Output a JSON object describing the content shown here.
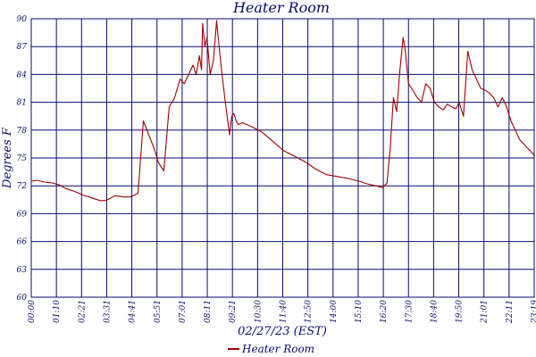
{
  "chart_data": {
    "type": "line",
    "title": "Heater Room",
    "xlabel": "02/27/23 (EST)",
    "ylabel": "Degrees F",
    "ylim": [
      60,
      90
    ],
    "y_ticks": [
      "60",
      "63",
      "66",
      "69",
      "72",
      "75",
      "78",
      "81",
      "84",
      "87",
      "90"
    ],
    "x_ticks": [
      "00:00",
      "01:10",
      "02:21",
      "03:31",
      "04:41",
      "05:51",
      "07:01",
      "08:11",
      "09:21",
      "10:30",
      "11:40",
      "12:50",
      "14:00",
      "15:10",
      "16:20",
      "17:30",
      "18:40",
      "19:50",
      "21:01",
      "22:11",
      "23:19"
    ],
    "grid": true,
    "legend_position": "bottom-center",
    "series": [
      {
        "name": "Heater Room",
        "color": "#a00000",
        "x_hours": [
          0,
          0.3,
          0.6,
          1,
          1.3,
          1.6,
          2,
          2.4,
          2.8,
          3.2,
          3.45,
          3.7,
          3.85,
          4,
          4.3,
          4.6,
          4.95,
          5.2,
          5.45,
          5.7,
          5.9,
          6.15,
          6.4,
          6.65,
          6.9,
          7.1,
          7.3,
          7.5,
          7.65,
          7.8,
          7.9,
          7.95,
          8.05,
          8.15,
          8.3,
          8.45,
          8.6,
          8.65,
          8.8,
          9,
          9.2,
          9.3,
          9.4,
          9.5,
          9.6,
          9.8,
          10.2,
          10.7,
          11.2,
          11.7,
          12.2,
          12.7,
          13.2,
          13.7,
          14.2,
          14.7,
          15.2,
          15.6,
          16,
          16.3,
          16.5,
          16.65,
          16.8,
          16.95,
          17.1,
          17.25,
          17.35,
          17.5,
          17.7,
          17.9,
          18.1,
          18.3,
          18.5,
          18.7,
          18.9,
          19.1,
          19.3,
          19.5,
          19.7,
          19.85,
          20.05,
          20.25,
          20.45,
          20.65,
          20.85,
          21.05,
          21.25,
          21.45,
          21.65,
          21.85,
          22.05,
          22.25,
          22.45,
          22.65,
          22.85,
          23.05,
          23.25,
          23.35
        ],
        "values": [
          72.5,
          72.6,
          72.4,
          72.3,
          72.1,
          71.7,
          71.4,
          71.0,
          70.7,
          70.4,
          70.4,
          70.7,
          70.9,
          70.9,
          70.8,
          70.8,
          71.2,
          79.0,
          77.5,
          76.0,
          74.5,
          73.6,
          80.5,
          81.5,
          83.5,
          83.0,
          84.0,
          85.0,
          84.0,
          86.0,
          84.5,
          89.5,
          87.0,
          88.0,
          84.0,
          85.5,
          89.8,
          88.5,
          85.0,
          81.0,
          77.5,
          79.5,
          79.8,
          79.0,
          78.6,
          78.8,
          78.4,
          77.8,
          76.8,
          75.8,
          75.2,
          74.6,
          73.8,
          73.2,
          73.0,
          72.8,
          72.5,
          72.2,
          72.0,
          71.8,
          72.3,
          76.0,
          81.5,
          80.0,
          84.5,
          88.0,
          86.5,
          83.0,
          82.3,
          81.5,
          81.0,
          83.0,
          82.5,
          81.0,
          80.5,
          80.2,
          80.8,
          80.5,
          80.3,
          81.0,
          79.5,
          86.5,
          84.5,
          83.5,
          82.5,
          82.3,
          82.0,
          81.5,
          80.5,
          81.5,
          80.5,
          79.0,
          78.0,
          77.0,
          76.5,
          76.0,
          75.5,
          75.2
        ]
      }
    ]
  }
}
